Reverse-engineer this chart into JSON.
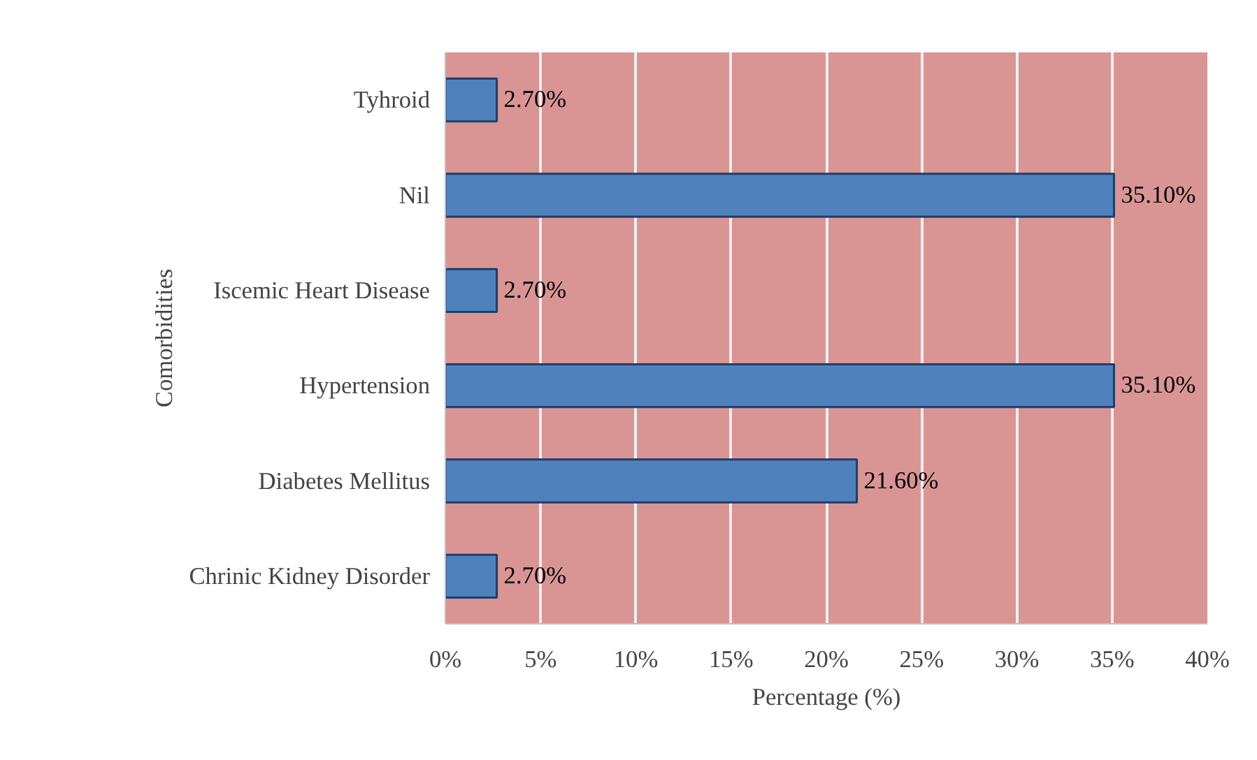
{
  "chart_data": {
    "type": "bar",
    "orientation": "horizontal",
    "ylabel": "Comorbidities",
    "xlabel": "Percentage (%)",
    "categories": [
      "Tyhroid",
      "Nil",
      "Iscemic Heart Disease",
      "Hypertension",
      "Diabetes Mellitus",
      "Chrinic Kidney Disorder"
    ],
    "values": [
      2.7,
      35.1,
      2.7,
      35.1,
      21.6,
      2.7
    ],
    "value_labels": [
      "2.70%",
      "35.10%",
      "2.70%",
      "35.10%",
      "21.60%",
      "2.70%"
    ],
    "color": "#4f81bd",
    "xlim": [
      0,
      40
    ],
    "xticks": [
      {
        "value": 0,
        "label": "0%"
      },
      {
        "value": 5,
        "label": "5%"
      },
      {
        "value": 10,
        "label": "10%"
      },
      {
        "value": 15,
        "label": "15%"
      },
      {
        "value": 20,
        "label": "20%"
      },
      {
        "value": 25,
        "label": "25%"
      },
      {
        "value": 30,
        "label": "30%"
      },
      {
        "value": 35,
        "label": "35%"
      },
      {
        "value": 40,
        "label": "40%"
      }
    ],
    "grid": "x"
  }
}
